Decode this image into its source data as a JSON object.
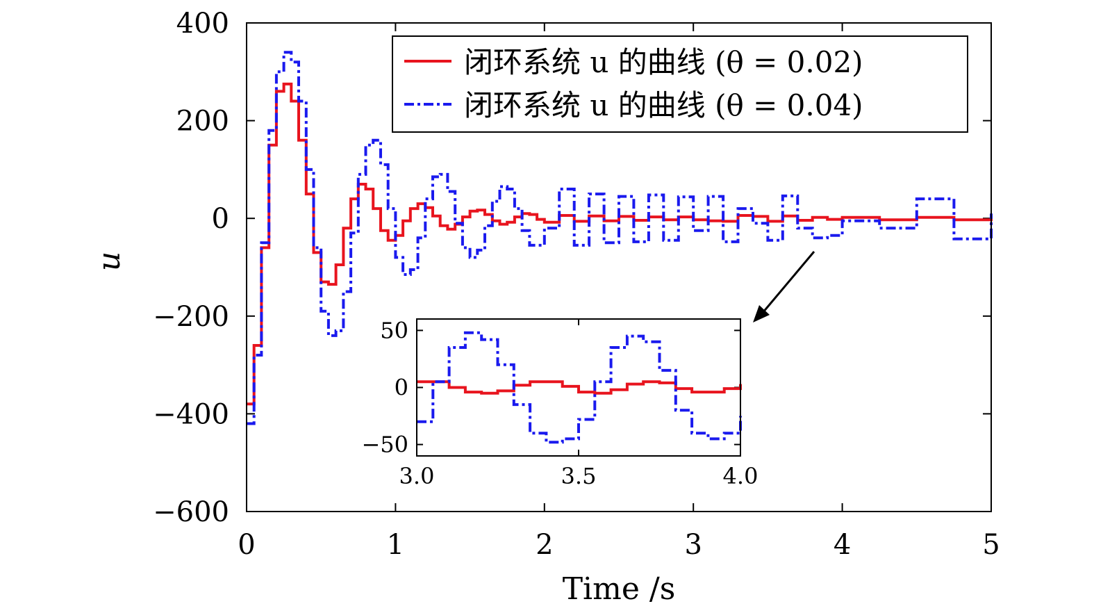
{
  "chart_data": {
    "type": "line",
    "xlabel": "Time /s",
    "ylabel": "u",
    "xlim": [
      0,
      5
    ],
    "ylim": [
      -600,
      400
    ],
    "xticks": [
      "0",
      "1",
      "2",
      "3",
      "4",
      "5"
    ],
    "yticks": [
      "400",
      "200",
      "0",
      "−200",
      "−400",
      "−600"
    ],
    "xtick_values": [
      0,
      1,
      2,
      3,
      4,
      5
    ],
    "ytick_values": [
      400,
      200,
      0,
      -200,
      -400,
      -600
    ],
    "legend_position": "top-right",
    "grid": false,
    "series": [
      {
        "name": "闭环系统 u 的曲线 (θ = 0.02)",
        "color": "#e8141e",
        "style": "solid",
        "x": [
          0.0,
          0.05,
          0.1,
          0.15,
          0.2,
          0.25,
          0.3,
          0.35,
          0.4,
          0.45,
          0.5,
          0.55,
          0.6,
          0.65,
          0.7,
          0.75,
          0.8,
          0.85,
          0.9,
          0.95,
          1.0,
          1.05,
          1.1,
          1.15,
          1.2,
          1.25,
          1.3,
          1.35,
          1.4,
          1.45,
          1.5,
          1.55,
          1.6,
          1.65,
          1.7,
          1.75,
          1.8,
          1.85,
          1.9,
          1.95,
          2.0,
          2.1,
          2.2,
          2.3,
          2.4,
          2.5,
          2.6,
          2.7,
          2.8,
          2.9,
          3.0,
          3.1,
          3.2,
          3.3,
          3.4,
          3.5,
          3.6,
          3.7,
          3.8,
          3.9,
          4.0,
          4.25,
          4.5,
          4.75,
          5.0
        ],
        "y": [
          -380,
          -260,
          -60,
          150,
          260,
          275,
          240,
          160,
          50,
          -70,
          -130,
          -135,
          -95,
          -20,
          40,
          70,
          60,
          20,
          -25,
          -45,
          -35,
          -5,
          20,
          30,
          22,
          5,
          -15,
          -22,
          -12,
          3,
          15,
          17,
          8,
          -5,
          -12,
          -8,
          3,
          10,
          8,
          -2,
          -8,
          6,
          -6,
          5,
          -5,
          4,
          -4,
          3,
          -3,
          3,
          -3,
          -5,
          -6,
          6,
          4,
          -6,
          5,
          -4,
          2,
          -2,
          2,
          -3,
          2,
          -3,
          0
        ]
      },
      {
        "name": "闭环系统 u 的曲线 (θ = 0.04)",
        "color": "#1a1aee",
        "style": "dashdot",
        "x": [
          0.0,
          0.05,
          0.1,
          0.15,
          0.2,
          0.25,
          0.3,
          0.35,
          0.4,
          0.45,
          0.5,
          0.55,
          0.6,
          0.65,
          0.7,
          0.75,
          0.8,
          0.85,
          0.9,
          0.95,
          1.0,
          1.05,
          1.1,
          1.15,
          1.2,
          1.25,
          1.3,
          1.35,
          1.4,
          1.45,
          1.5,
          1.55,
          1.6,
          1.65,
          1.7,
          1.75,
          1.8,
          1.85,
          1.9,
          1.95,
          2.0,
          2.1,
          2.2,
          2.3,
          2.4,
          2.5,
          2.6,
          2.7,
          2.8,
          2.9,
          3.0,
          3.1,
          3.2,
          3.3,
          3.4,
          3.5,
          3.6,
          3.7,
          3.8,
          3.9,
          4.0,
          4.25,
          4.5,
          4.75,
          5.0
        ],
        "y": [
          -420,
          -280,
          -50,
          180,
          300,
          340,
          320,
          240,
          100,
          -60,
          -190,
          -240,
          -230,
          -150,
          -30,
          90,
          150,
          160,
          110,
          20,
          -80,
          -115,
          -105,
          -40,
          40,
          85,
          90,
          55,
          -10,
          -60,
          -80,
          -65,
          -15,
          35,
          65,
          60,
          20,
          -25,
          -55,
          -55,
          -20,
          60,
          -55,
          50,
          -50,
          45,
          -48,
          48,
          -45,
          44,
          -25,
          45,
          -48,
          20,
          -10,
          -45,
          46,
          -20,
          -40,
          -35,
          -5,
          -20,
          40,
          -42,
          10
        ]
      }
    ],
    "inset": {
      "xlim": [
        3.0,
        4.0
      ],
      "ylim": [
        -60,
        60
      ],
      "xticks": [
        "3.0",
        "3.5",
        "4.0"
      ],
      "yticks": [
        "50",
        "0",
        "−50"
      ],
      "xtick_values": [
        3.0,
        3.5,
        4.0
      ],
      "ytick_values": [
        50,
        0,
        -50
      ],
      "series": [
        {
          "name": "θ = 0.02",
          "x": [
            3.0,
            3.05,
            3.1,
            3.15,
            3.2,
            3.25,
            3.3,
            3.35,
            3.4,
            3.45,
            3.5,
            3.55,
            3.6,
            3.65,
            3.7,
            3.75,
            3.8,
            3.85,
            3.9,
            3.95,
            4.0
          ],
          "y": [
            5,
            5,
            0,
            -4,
            -5,
            -3,
            2,
            5,
            5,
            1,
            -4,
            -5,
            -2,
            3,
            5,
            4,
            -1,
            -4,
            -4,
            -1,
            3
          ]
        },
        {
          "name": "θ = 0.04",
          "x": [
            3.0,
            3.05,
            3.1,
            3.15,
            3.2,
            3.25,
            3.3,
            3.35,
            3.4,
            3.45,
            3.5,
            3.55,
            3.6,
            3.65,
            3.7,
            3.75,
            3.8,
            3.85,
            3.9,
            3.95,
            4.0
          ],
          "y": [
            -30,
            5,
            35,
            48,
            42,
            20,
            -15,
            -40,
            -48,
            -45,
            -28,
            5,
            35,
            45,
            40,
            15,
            -20,
            -40,
            -45,
            -40,
            -25
          ]
        }
      ]
    }
  }
}
